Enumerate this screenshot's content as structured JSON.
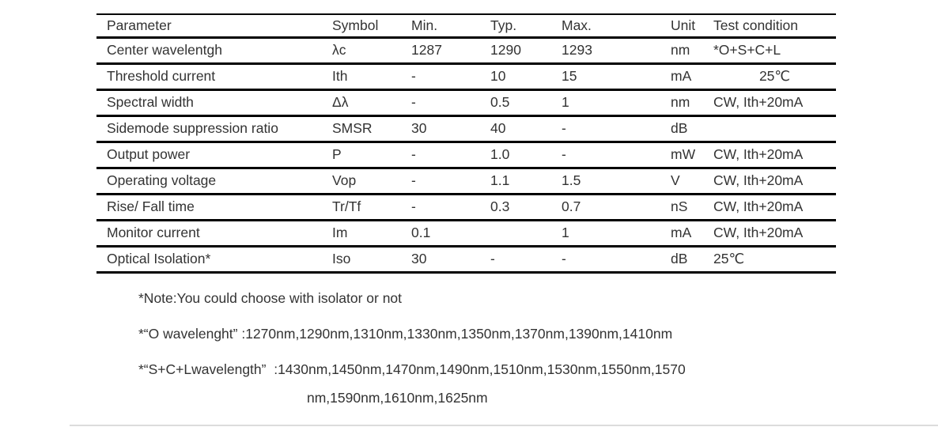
{
  "page": {
    "background": "#ffffff",
    "text_color": "#333333",
    "border_color": "#000000"
  },
  "table": {
    "columns": [
      "Parameter",
      "Symbol",
      "Min.",
      "Typ.",
      "Max.",
      "Unit",
      "Test condition"
    ],
    "rows": [
      {
        "cells": [
          "Center wavelentgh",
          "λc",
          "1287",
          "1290",
          "1293",
          "nm",
          "*O+S+C+L"
        ]
      },
      {
        "cells": [
          "Threshold current",
          "Ith",
          "-",
          "10",
          "15",
          "mA",
          "25℃"
        ],
        "tc_align": "center"
      },
      {
        "cells": [
          "Spectral width",
          "Δλ",
          "-",
          "0.5",
          "1",
          "nm",
          "CW, Ith+20mA"
        ]
      },
      {
        "cells": [
          "Sidemode suppression ratio",
          "SMSR",
          "30",
          "40",
          "-",
          "dB",
          ""
        ]
      },
      {
        "cells": [
          "Output power",
          "P",
          "-",
          "1.0",
          "-",
          "mW",
          "CW, Ith+20mA"
        ]
      },
      {
        "cells": [
          "Operating voltage",
          "Vop",
          "-",
          "1.1",
          "1.5",
          "V",
          "CW, Ith+20mA"
        ]
      },
      {
        "cells": [
          "Rise/ Fall time",
          "Tr/Tf",
          "-",
          "0.3",
          "0.7",
          "nS",
          "CW, Ith+20mA"
        ]
      },
      {
        "cells": [
          "Monitor current",
          "Im",
          "0.1",
          "",
          "1",
          "mA",
          "CW, Ith+20mA"
        ]
      },
      {
        "cells": [
          "Optical Isolation*",
          "Iso",
          "30",
          "-",
          "-",
          "dB",
          "25℃"
        ]
      }
    ]
  },
  "notes": {
    "line1": "*Note:You could choose with isolator or not",
    "line2": "*“O wavelenght” :1270nm,1290nm,1310nm,1330nm,1350nm,1370nm,1390nm,1410nm",
    "line3a": "*“S+C+Lwavelength”  :1430nm,1450nm,1470nm,1490nm,1510nm,1530nm,1550nm,1570",
    "line3b": "nm,1590nm,1610nm,1625nm"
  }
}
